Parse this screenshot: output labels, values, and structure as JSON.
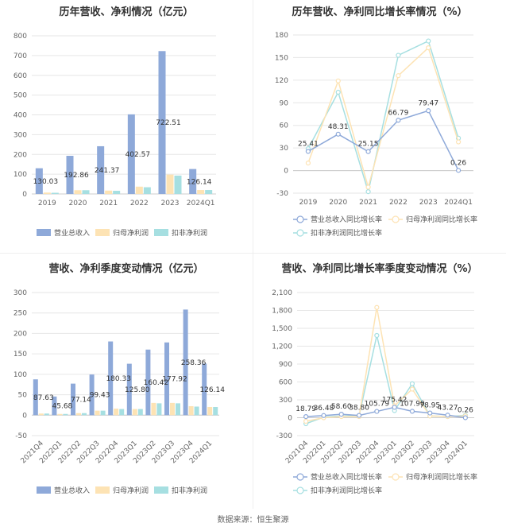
{
  "source": "数据来源：恒生聚源",
  "chart_data": [
    {
      "type": "bar",
      "title": "历年营收、净利情况（亿元）",
      "categories": [
        "2019",
        "2020",
        "2021",
        "2022",
        "2023",
        "2024Q1"
      ],
      "ylim": [
        0,
        800
      ],
      "yticks": [
        0,
        100,
        200,
        300,
        400,
        500,
        600,
        700,
        800
      ],
      "series": [
        {
          "name": "营业总收入",
          "color": "#8ea9d9",
          "values": [
            130.03,
            192.86,
            241.37,
            402.57,
            722.51,
            126.14
          ],
          "labels": [
            "130.03",
            "192.86",
            "241.37",
            "402.57",
            "722.51",
            "126.14"
          ]
        },
        {
          "name": "归母净利润",
          "color": "#fde3b4",
          "values": [
            7,
            19,
            17,
            37,
            98,
            20
          ]
        },
        {
          "name": "扣非净利润",
          "color": "#a6dfe1",
          "values": [
            6,
            19,
            16,
            34,
            93,
            20
          ]
        }
      ],
      "legend": "bottom"
    },
    {
      "type": "line",
      "title": "历年营收、净利同比增长率情况（%）",
      "categories": [
        "2019",
        "2020",
        "2021",
        "2022",
        "2023",
        "2024Q1"
      ],
      "ylim": [
        -30,
        180
      ],
      "yticks": [
        -30,
        0,
        30,
        60,
        90,
        120,
        150,
        180
      ],
      "series": [
        {
          "name": "营业总收入同比增长率",
          "color": "#8ea9d9",
          "values": [
            25.41,
            48.31,
            25.15,
            66.79,
            79.47,
            0.26
          ],
          "labels": [
            "25.41",
            "48.31",
            "25.15",
            "66.79",
            "79.47",
            "0.26"
          ]
        },
        {
          "name": "归母净利润同比增长率",
          "color": "#fde3b4",
          "values": [
            10,
            119,
            -22,
            126,
            163,
            38
          ]
        },
        {
          "name": "扣非净利润同比增长率",
          "color": "#a6dfe1",
          "values": [
            29,
            104,
            -28,
            153,
            172,
            43
          ]
        }
      ],
      "legend": "bottom"
    },
    {
      "type": "bar",
      "title": "营收、净利季度变动情况（亿元）",
      "categories": [
        "2021Q4",
        "2022Q1",
        "2022Q2",
        "2022Q3",
        "2022Q4",
        "2023Q1",
        "2023Q2",
        "2023Q3",
        "2023Q4",
        "2024Q1"
      ],
      "ylim": [
        -50,
        300
      ],
      "yticks": [
        -50,
        0,
        50,
        100,
        150,
        200,
        250,
        300
      ],
      "series": [
        {
          "name": "营业总收入",
          "color": "#8ea9d9",
          "values": [
            87.63,
            45.68,
            77.14,
            99.43,
            180.33,
            125.8,
            160.42,
            177.92,
            258.36,
            126.14
          ],
          "labels": [
            "87.63",
            "45.68",
            "77.14",
            "99.43",
            "180.33",
            "125.80",
            "160.42",
            "177.92",
            "258.36",
            "126.14"
          ]
        },
        {
          "name": "归母净利润",
          "color": "#fde3b4",
          "values": [
            4,
            3,
            5,
            11,
            16,
            15,
            30,
            30,
            22,
            20
          ]
        },
        {
          "name": "扣非净利润",
          "color": "#a6dfe1",
          "values": [
            4,
            3,
            5,
            11,
            15,
            15,
            29,
            29,
            21,
            20
          ]
        }
      ],
      "legend": "bottom"
    },
    {
      "type": "line",
      "title": "营收、净利同比增长率季度变动情况（%）",
      "categories": [
        "2021Q4",
        "2022Q1",
        "2022Q2",
        "2022Q3",
        "2022Q4",
        "2023Q1",
        "2023Q2",
        "2023Q3",
        "2023Q4",
        "2024Q1"
      ],
      "ylim": [
        -300,
        2100
      ],
      "yticks": [
        -300,
        0,
        300,
        600,
        900,
        1200,
        1500,
        1800,
        2100
      ],
      "series": [
        {
          "name": "营业总收入同比增长率",
          "color": "#8ea9d9",
          "values": [
            18.79,
            36.48,
            58.6,
            38.8,
            105.79,
            175.42,
            107.9,
            78.95,
            43.27,
            0.26
          ],
          "labels": [
            "18.79",
            "36.48",
            "58.60",
            "38.80",
            "105.79",
            "175.42",
            "107.90",
            "78.95",
            "43.27",
            "0.26"
          ]
        },
        {
          "name": "归母净利润同比增长率",
          "color": "#fde3b4",
          "values": [
            -60,
            0,
            20,
            20,
            1850,
            200,
            480,
            30,
            20,
            30
          ]
        },
        {
          "name": "扣非净利润同比增长率",
          "color": "#a6dfe1",
          "values": [
            -100,
            10,
            30,
            30,
            1380,
            120,
            570,
            30,
            20,
            40
          ]
        }
      ],
      "legend": "bottom"
    }
  ]
}
